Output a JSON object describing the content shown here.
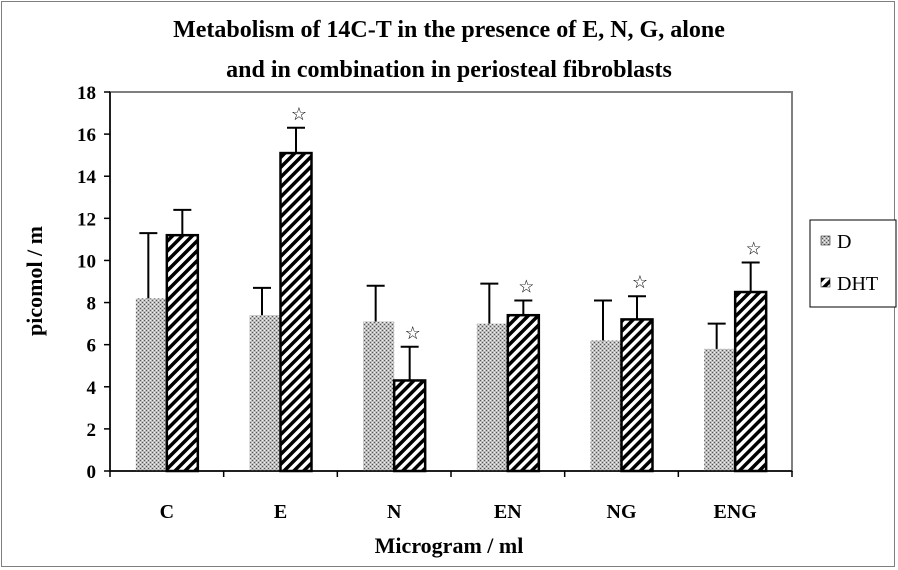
{
  "chart_data": {
    "type": "bar",
    "title": "Metabolism of 14C-T in the presence of E, N, G, alone and in combination in periosteal fibroblasts",
    "title_lines": [
      "Metabolism of 14C-T in the presence of E, N, G, alone",
      "and in combination in periosteal fibroblasts"
    ],
    "xlabel": "Microgram / ml",
    "ylabel": "picomol / m",
    "ylim": [
      0,
      18
    ],
    "yticks": [
      0,
      2,
      4,
      6,
      8,
      10,
      12,
      14,
      16,
      18
    ],
    "categories": [
      "C",
      "E",
      "N",
      "EN",
      "NG",
      "ENG"
    ],
    "series": [
      {
        "name": "D",
        "pattern": "dots",
        "values": [
          8.2,
          7.4,
          7.1,
          7.0,
          6.2,
          5.8
        ],
        "errors": [
          3.1,
          1.3,
          1.7,
          1.9,
          1.9,
          1.2
        ]
      },
      {
        "name": "DHT",
        "pattern": "hatch",
        "values": [
          11.2,
          15.1,
          4.3,
          7.4,
          7.2,
          8.5
        ],
        "errors": [
          1.2,
          1.2,
          1.6,
          0.7,
          1.1,
          1.4
        ]
      }
    ],
    "significance_markers": [
      {
        "series": "DHT",
        "category": "E",
        "symbol": "☆"
      },
      {
        "series": "DHT",
        "category": "N",
        "symbol": "☆"
      },
      {
        "series": "DHT",
        "category": "EN",
        "symbol": "☆"
      },
      {
        "series": "DHT",
        "category": "NG",
        "symbol": "☆"
      },
      {
        "series": "DHT",
        "category": "ENG",
        "symbol": "☆"
      }
    ],
    "legend": {
      "position": "right",
      "entries": [
        "D",
        "DHT"
      ]
    },
    "grid": false
  }
}
